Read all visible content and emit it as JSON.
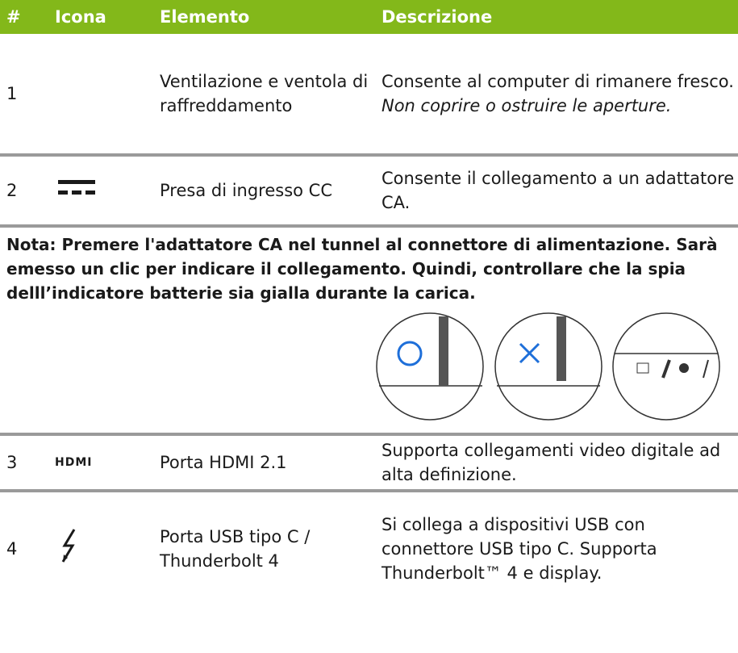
{
  "table": {
    "header": [
      "#",
      "Icona",
      "Elemento",
      "Descrizione"
    ],
    "rows": [
      {
        "num": "1",
        "element": "Ventilazione e ventola di raffreddamento",
        "description": "Consente al computer di rimanere fresco.",
        "warning": "Non coprire o ostruire le aperture."
      },
      {
        "num": "2",
        "element": "Presa di ingresso CC",
        "description": "Consente il collegamento a un adattatore CA."
      }
    ],
    "note": "Nota: Premere l'adattatore CA nel tunnel al connettore di alimentazione. Sarà emesso un clic per indicare il collegamento. Quindi, controllare che la spia delll’indicatore batterie sia gialla durante la carica.",
    "rows_after": [
      {
        "num": "3",
        "icon": "HDMI",
        "element": "Porta HDMI 2.1",
        "description": "Supporta collegamenti video digitale ad alta definizione."
      },
      {
        "num": "4",
        "element": "Porta USB tipo C / Thunderbolt 4",
        "description": "Si collega a dispositivi USB con connettore USB tipo C. Supporta Thunderbolt™ 4 e display."
      }
    ]
  }
}
